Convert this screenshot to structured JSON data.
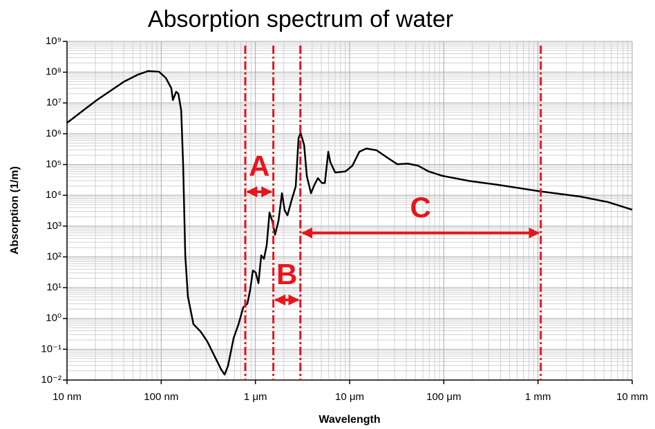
{
  "chart_data": {
    "type": "line",
    "title": "Absorption spectrum of water",
    "x_label": "Wavelength",
    "y_label": "Absorption (1/m)",
    "x_log": true,
    "y_log": true,
    "grid": true,
    "minor_grid": true,
    "xlim": [
      10,
      10000000
    ],
    "ylim": [
      0.01,
      1000000000
    ],
    "xticks": [
      {
        "value": 10,
        "label": "10 nm"
      },
      {
        "value": 100,
        "label": "100 nm"
      },
      {
        "value": 1000,
        "label": "1 μm"
      },
      {
        "value": 10000,
        "label": "10 μm"
      },
      {
        "value": 100000,
        "label": "100 μm"
      },
      {
        "value": 1000000,
        "label": "1 mm"
      },
      {
        "value": 10000000,
        "label": "10 mm"
      }
    ],
    "yticks": [
      {
        "value": 0.01,
        "label": "10⁻²"
      },
      {
        "value": 0.1,
        "label": "10⁻¹"
      },
      {
        "value": 1,
        "label": "10⁰"
      },
      {
        "value": 10,
        "label": "10¹"
      },
      {
        "value": 100,
        "label": "10²"
      },
      {
        "value": 1000,
        "label": "10³"
      },
      {
        "value": 10000,
        "label": "10⁴"
      },
      {
        "value": 100000,
        "label": "10⁵"
      },
      {
        "value": 1000000,
        "label": "10⁶"
      },
      {
        "value": 10000000,
        "label": "10⁷"
      },
      {
        "value": 100000000,
        "label": "10⁸"
      },
      {
        "value": 1000000000,
        "label": "10⁹"
      }
    ],
    "series": [
      {
        "color": "#000000",
        "x": [
          10,
          20.7,
          40.6,
          57,
          73,
          95,
          112,
          128,
          133,
          144,
          152,
          163,
          171,
          180,
          192,
          220,
          261,
          308,
          365,
          433,
          471,
          512,
          587,
          661,
          743,
          822,
          879,
          941,
          1007,
          1077,
          1153,
          1233,
          1319,
          1411,
          1510,
          1615,
          1758,
          1914,
          2047,
          2188,
          2421,
          2679,
          2871,
          3019,
          3289,
          3515,
          3890,
          4236,
          4603,
          5094,
          5458,
          5935,
          6238,
          7025,
          9057,
          10715,
          12680,
          15030,
          19360,
          24950,
          32140,
          41400,
          53330,
          68710,
          96400,
          189000,
          372000,
          1030000,
          2820000,
          5560000,
          10000000
        ],
        "values": [
          2260000,
          12400000,
          50000000,
          84000000,
          109000000,
          103000000,
          65000000,
          30000000,
          12400000,
          23000000,
          20000000,
          5700000,
          92000,
          112,
          5.1,
          0.65,
          0.38,
          0.18,
          0.063,
          0.022,
          0.015,
          0.029,
          0.23,
          0.64,
          2.3,
          3.0,
          8.5,
          36,
          31,
          14,
          112,
          87,
          245,
          2750,
          1480,
          525,
          1480,
          11700,
          3200,
          2240,
          6900,
          19500,
          720000,
          1050000,
          430000,
          42000,
          11700,
          22000,
          36000,
          25000,
          25000,
          260000,
          120000,
          55000,
          60000,
          92000,
          260000,
          330000,
          290000,
          170000,
          102000,
          107000,
          92000,
          60000,
          43000,
          29000,
          22000,
          13600,
          9100,
          6000,
          3400
        ]
      }
    ],
    "annotation_color": "#e8141c",
    "vlines": [
      780,
      1550,
      3000,
      1070000
    ],
    "annotations": [
      {
        "text": "A",
        "x": [
          780,
          1550
        ],
        "y": 13000
      },
      {
        "text": "B",
        "x": [
          1550,
          3000
        ],
        "y": 4
      },
      {
        "text": "C",
        "x": [
          3000,
          1070000
        ],
        "y": 600
      }
    ]
  }
}
